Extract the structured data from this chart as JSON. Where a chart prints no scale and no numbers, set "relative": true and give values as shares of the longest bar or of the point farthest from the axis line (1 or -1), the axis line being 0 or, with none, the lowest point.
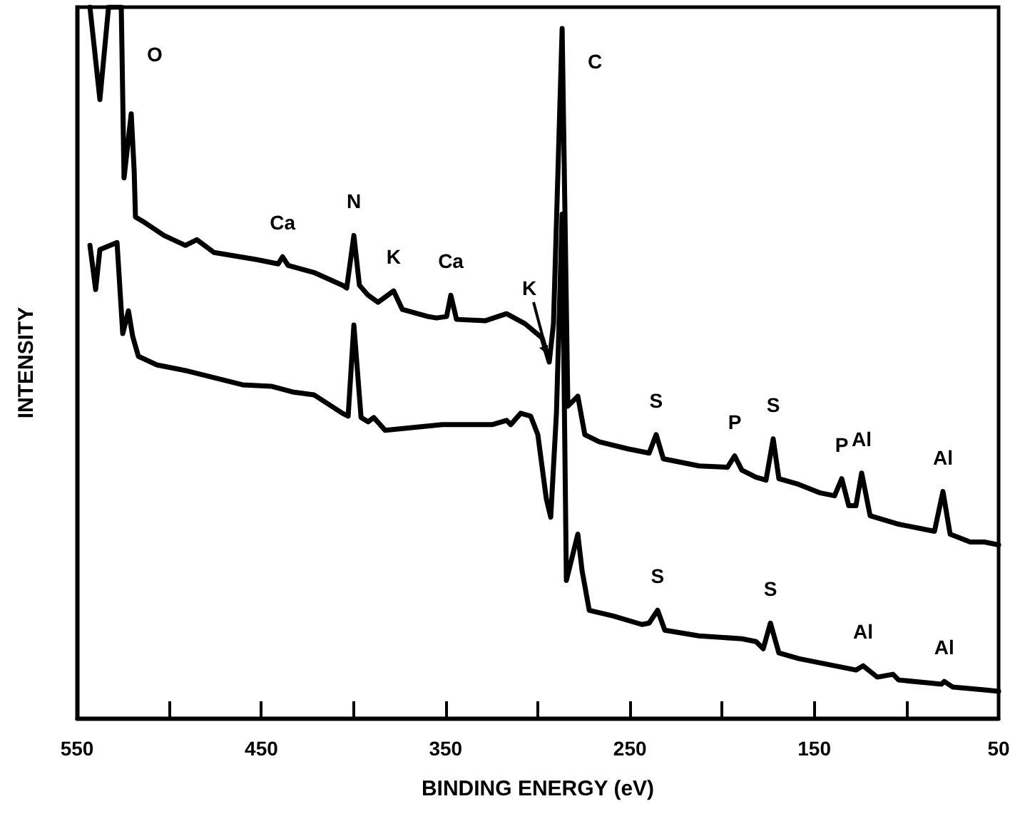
{
  "chart_data": {
    "type": "line",
    "relative": true,
    "xlabel": "BINDING ENERGY (eV)",
    "ylabel": "INTENSITY",
    "xlim": [
      550,
      50
    ],
    "xticks": [
      550,
      {
        "value": 500,
        "label": null
      },
      450,
      {
        "value": 400,
        "label": null
      },
      350,
      {
        "value": 300,
        "label": null
      },
      250,
      {
        "value": 200,
        "label": null
      },
      150,
      {
        "value": 100,
        "label": null
      },
      50
    ],
    "series": [
      {
        "color": "#000000",
        "x": [
          543.0,
          537.6,
          532.9,
          526.0,
          524.5,
          520.6,
          519.0,
          518.3,
          514.4,
          502.8,
          491.2,
          485.0,
          475.7,
          452.5,
          440.9,
          438.5,
          435.5,
          421.5,
          406.0,
          403.7,
          399.8,
          396.8,
          392.1,
          386.7,
          378.2,
          373.5,
          359.6,
          355.0,
          349.5,
          347.2,
          344.1,
          328.6,
          317.0,
          307.0,
          297.7,
          293.8,
          291.5,
          286.8,
          283.7,
          278.3,
          274.5,
          266.7,
          251.2,
          239.6,
          235.8,
          231.9,
          212.5,
          197.1,
          193.2,
          189.3,
          181.6,
          176.2,
          172.3,
          169.2,
          158.4,
          146.7,
          139.0,
          135.1,
          131.3,
          127.4,
          124.3,
          119.7,
          104.2,
          88.7,
          84.8,
          80.2,
          76.3,
          65.4,
          57.7,
          50.0
        ],
        "values": [
          1,
          0.87,
          1,
          1,
          0.76,
          0.85,
          0.77,
          0.705,
          0.699,
          0.679,
          0.665,
          0.673,
          0.655,
          0.645,
          0.639,
          0.649,
          0.637,
          0.627,
          0.609,
          0.605,
          0.679,
          0.609,
          0.595,
          0.585,
          0.601,
          0.575,
          0.565,
          0.563,
          0.565,
          0.595,
          0.561,
          0.559,
          0.569,
          0.555,
          0.535,
          0.501,
          0.555,
          0.97,
          0.439,
          0.453,
          0.399,
          0.389,
          0.379,
          0.373,
          0.399,
          0.365,
          0.355,
          0.353,
          0.369,
          0.349,
          0.339,
          0.335,
          0.393,
          0.337,
          0.329,
          0.317,
          0.313,
          0.337,
          0.299,
          0.299,
          0.345,
          0.285,
          0.273,
          0.265,
          0.263,
          0.319,
          0.259,
          0.248,
          0.248,
          0.244
        ]
      },
      {
        "color": "#000000",
        "x": [
          543.0,
          539.9,
          537.6,
          528.3,
          525.2,
          522.1,
          519.8,
          516.7,
          506.7,
          491.2,
          475.7,
          460.2,
          444.7,
          433.1,
          421.5,
          406.0,
          402.9,
          399.8,
          395.9,
          392.1,
          389.0,
          382.8,
          367.3,
          351.8,
          336.4,
          324.8,
          317.0,
          314.7,
          309.3,
          303.9,
          300.0,
          295.4,
          293.0,
          289.9,
          286.8,
          284.5,
          278.3,
          276.0,
          272.1,
          259.0,
          243.5,
          239.6,
          235.0,
          231.1,
          212.5,
          189.3,
          181.6,
          177.7,
          173.8,
          169.2,
          158.4,
          142.9,
          127.4,
          123.5,
          115.8,
          107.3,
          104.2,
          88.7,
          81.0,
          79.5,
          74.8,
          57.7,
          50.0
        ],
        "values": [
          0.665,
          0.603,
          0.659,
          0.669,
          0.541,
          0.573,
          0.537,
          0.509,
          0.497,
          0.489,
          0.479,
          0.469,
          0.467,
          0.459,
          0.455,
          0.429,
          0.425,
          0.553,
          0.423,
          0.417,
          0.423,
          0.405,
          0.409,
          0.413,
          0.413,
          0.413,
          0.419,
          0.413,
          0.429,
          0.425,
          0.399,
          0.309,
          0.283,
          0.429,
          0.709,
          0.194,
          0.259,
          0.208,
          0.152,
          0.144,
          0.132,
          0.134,
          0.152,
          0.124,
          0.116,
          0.112,
          0.108,
          0.098,
          0.134,
          0.092,
          0.084,
          0.076,
          0.068,
          0.074,
          0.058,
          0.062,
          0.054,
          0.05,
          0.048,
          0.052,
          0.044,
          0.04,
          0.038
        ]
      }
    ],
    "annotations": [
      {
        "text": "O",
        "x": 526.0,
        "y": 0.95
      },
      {
        "text": "Ca",
        "x": 438.5,
        "y": 0.649
      },
      {
        "text": "N",
        "x": 399.8,
        "y": 0.679
      },
      {
        "text": "K",
        "x": 378.2,
        "y": 0.601
      },
      {
        "text": "Ca",
        "x": 347.2,
        "y": 0.595
      },
      {
        "text": "K",
        "x": 293.8,
        "y": 0.501
      },
      {
        "text": "C",
        "x": 286.8,
        "y": 0.94
      },
      {
        "text": "S",
        "x": 235.8,
        "y": 0.399
      },
      {
        "text": "P",
        "x": 193.2,
        "y": 0.369
      },
      {
        "text": "S",
        "x": 172.3,
        "y": 0.393
      },
      {
        "text": "P",
        "x": 135.1,
        "y": 0.337
      },
      {
        "text": "Al",
        "x": 124.3,
        "y": 0.345
      },
      {
        "text": "Al",
        "x": 80.2,
        "y": 0.319
      },
      {
        "text": "S",
        "x": 235.0,
        "y": 0.152
      },
      {
        "text": "S",
        "x": 173.8,
        "y": 0.134
      },
      {
        "text": "Al",
        "x": 123.5,
        "y": 0.074
      },
      {
        "text": "Al",
        "x": 79.5,
        "y": 0.052
      }
    ]
  }
}
